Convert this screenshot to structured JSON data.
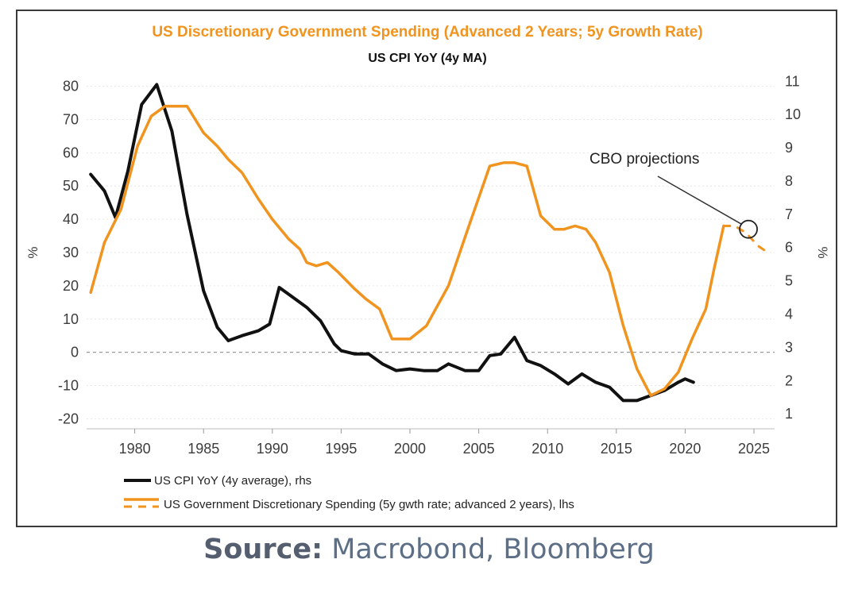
{
  "chart_data": {
    "type": "line",
    "title": "US Discretionary Government Spending (Advanced 2 Years; 5y Growth Rate)",
    "subtitle": "US CPI YoY (4y MA)",
    "ylabel_left": "%",
    "ylabel_right": "%",
    "xlim": [
      1976.5,
      2026.5
    ],
    "ylim_left": [
      -23,
      83
    ],
    "ylim_right": [
      0.55,
      11.15
    ],
    "x_ticks": [
      1980,
      1985,
      1990,
      1995,
      2000,
      2005,
      2010,
      2015,
      2020,
      2025
    ],
    "y_ticks_left": [
      80,
      70,
      60,
      50,
      40,
      30,
      20,
      10,
      0,
      -10,
      -20
    ],
    "y_ticks_right": [
      11,
      10,
      9,
      8,
      7,
      6,
      5,
      4,
      3,
      2,
      1
    ],
    "zero_line": true,
    "series": [
      {
        "name": "US CPI YoY (4y average), rhs",
        "axis": "right",
        "color": "#111111",
        "x": [
          1976.8,
          1977.8,
          1978.6,
          1979.5,
          1980.5,
          1981.6,
          1982.7,
          1983.8,
          1985.0,
          1986.0,
          1986.8,
          1987.8,
          1989.0,
          1989.8,
          1990.5,
          1991.5,
          1992.5,
          1993.5,
          1994.5,
          1995.0,
          1996.0,
          1997.0,
          1998.0,
          1999.0,
          2000.0,
          2001.0,
          2002.0,
          2002.8,
          2004.0,
          2005.0,
          2005.8,
          2006.6,
          2007.6,
          2008.5,
          2009.5,
          2010.5,
          2011.5,
          2012.5,
          2013.5,
          2014.5,
          2015.5,
          2016.5,
          2017.5,
          2018.5,
          2019.5,
          2020.0,
          2020.6
        ],
        "values": [
          8.2,
          7.7,
          6.9,
          8.3,
          10.3,
          10.9,
          9.5,
          7.0,
          4.7,
          3.6,
          3.2,
          3.35,
          3.5,
          3.7,
          4.8,
          4.5,
          4.2,
          3.8,
          3.1,
          2.9,
          2.8,
          2.8,
          2.5,
          2.3,
          2.35,
          2.3,
          2.3,
          2.5,
          2.3,
          2.3,
          2.75,
          2.8,
          3.3,
          2.6,
          2.45,
          2.2,
          1.9,
          2.2,
          1.95,
          1.8,
          1.4,
          1.4,
          1.55,
          1.7,
          1.95,
          2.05,
          1.95
        ]
      },
      {
        "name": "US Government Discretionary Spending (5y gwth rate; advanced 2 years), lhs",
        "axis": "left",
        "color": "#f0941f",
        "x": [
          1976.8,
          1977.8,
          1979.0,
          1980.2,
          1981.2,
          1982.2,
          1983.8,
          1985.0,
          1986.0,
          1986.8,
          1987.8,
          1989.0,
          1990.0,
          1991.2,
          1992.0,
          1992.5,
          1993.2,
          1994.0,
          1994.8,
          1996.0,
          1996.8,
          1997.8,
          1998.7,
          2000.0,
          2001.2,
          2002.8,
          2004.2,
          2005.8,
          2006.8,
          2007.6,
          2008.5,
          2009.5,
          2010.5,
          2011.2,
          2012.0,
          2012.8,
          2013.5,
          2014.5,
          2015.5,
          2016.5,
          2017.5,
          2018.5,
          2019.5,
          2020.5,
          2021.5,
          2022.1,
          2022.8
        ],
        "values": [
          18,
          33,
          43,
          62,
          71,
          74,
          74,
          66,
          62,
          58,
          54,
          46,
          40,
          34,
          31,
          27,
          26,
          27,
          24,
          19,
          16,
          13,
          4,
          4,
          8,
          20,
          37,
          56,
          57,
          57,
          56,
          41,
          37,
          37,
          38,
          37,
          33,
          24,
          8,
          -5,
          -13,
          -11,
          -6,
          4,
          13,
          25,
          38
        ]
      },
      {
        "name": "CBO projections",
        "axis": "left",
        "color": "#f0941f",
        "dashed": true,
        "x": [
          2022.8,
          2023.6,
          2024.4,
          2025.3,
          2026.0
        ],
        "values": [
          38,
          38,
          36,
          32,
          30
        ]
      }
    ],
    "annotations": [
      {
        "text": "CBO projections",
        "x": 2024.6,
        "y": 37
      }
    ],
    "legend": {
      "position": "bottom-left",
      "entries": [
        "US CPI YoY (4y average), rhs",
        "US Government Discretionary Spending (5y gwth rate; advanced 2 years), lhs"
      ]
    }
  },
  "source": {
    "label": "Source:",
    "text": " Macrobond, Bloomberg"
  }
}
